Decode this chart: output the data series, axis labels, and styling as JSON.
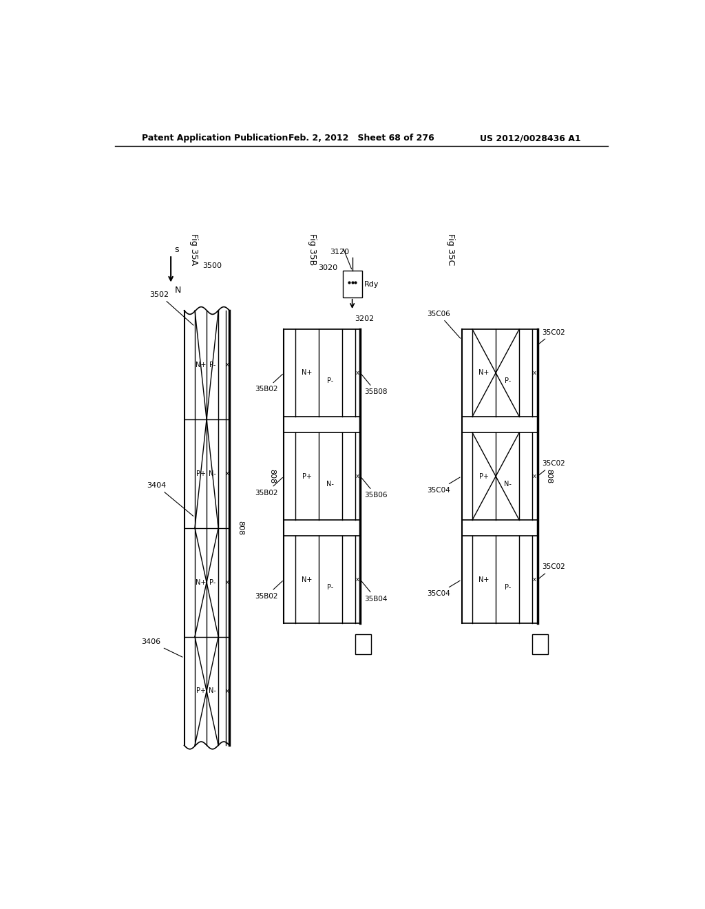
{
  "title_left": "Patent Application Publication",
  "title_center": "Feb. 2, 2012   Sheet 68 of 276",
  "title_right": "US 2012/0028436 A1",
  "background_color": "#ffffff",
  "fig35A": {
    "label": "Fig 35A",
    "ref_3500": "3500",
    "ref_3502": "3502",
    "ref_3404": "3404",
    "ref_3406": "3406",
    "ref_808": "808",
    "row_labels": [
      [
        "P+",
        "N-"
      ],
      [
        "N+",
        "P-"
      ],
      [
        "P+",
        "N-"
      ],
      [
        "N+",
        "P-"
      ]
    ]
  },
  "fig35B": {
    "label": "Fig 35B",
    "ref_3020": "3020",
    "ref_3120": "3120",
    "ref_3202": "3202",
    "ref_rdy": "Rdy",
    "ref_35B02": "35B02",
    "ref_35B04": "35B04",
    "ref_35B06": "35B06",
    "ref_35B08": "35B08",
    "ref_808": "808",
    "block_labels": [
      [
        "N+",
        "P-"
      ],
      [
        "P+",
        "N-"
      ],
      [
        "N+",
        "P-"
      ]
    ]
  },
  "fig35C": {
    "label": "Fig 35C",
    "ref_35C02a": "35C02",
    "ref_35C02b": "35C02",
    "ref_35C02c": "35C02",
    "ref_35C04a": "35C04",
    "ref_35C04b": "35C04",
    "ref_35C06": "35C06",
    "ref_808": "808",
    "block_labels": [
      [
        "N+",
        "P-"
      ],
      [
        "P+",
        "N-"
      ],
      [
        "N+",
        "P-"
      ]
    ]
  }
}
